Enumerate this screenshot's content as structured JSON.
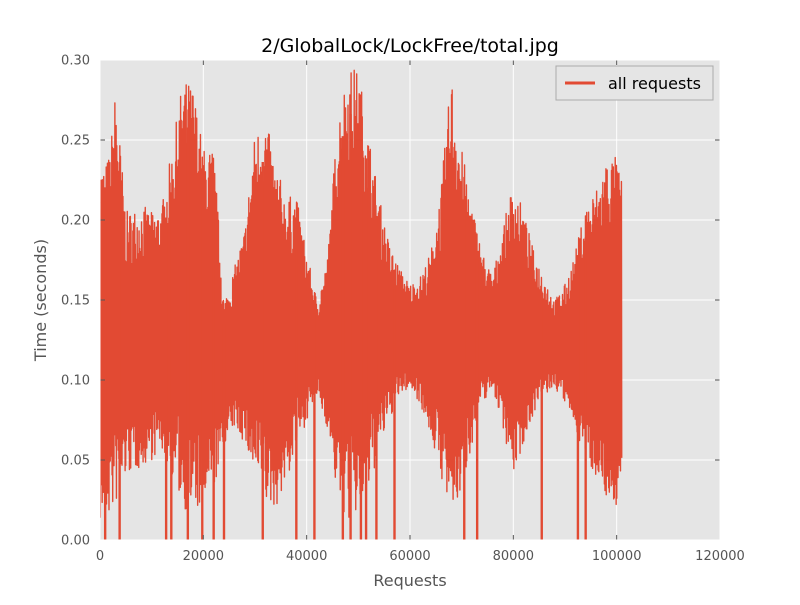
{
  "chart_data": {
    "type": "line",
    "title": "2/GlobalLock/LockFree/total.jpg",
    "xlabel": "Requests",
    "ylabel": "Time (seconds)",
    "xlim": [
      0,
      120000
    ],
    "ylim": [
      0.0,
      0.3
    ],
    "x_ticks": [
      0,
      20000,
      40000,
      60000,
      80000,
      100000,
      120000
    ],
    "x_tick_labels": [
      "0",
      "20000",
      "40000",
      "60000",
      "80000",
      "100000",
      "120000"
    ],
    "y_ticks": [
      0.0,
      0.05,
      0.1,
      0.15,
      0.2,
      0.25,
      0.3
    ],
    "y_tick_labels": [
      "0.00",
      "0.05",
      "0.10",
      "0.15",
      "0.20",
      "0.25",
      "0.30"
    ],
    "grid": true,
    "legend": "top-right",
    "colors": {
      "series": "#e24a33",
      "plot_background": "#e5e5e5",
      "grid": "#ffffff",
      "text": "#555555"
    },
    "series": [
      {
        "name": "all requests",
        "x_range": [
          0,
          101000
        ],
        "envelope": {
          "x": [
            0,
            1000,
            2000,
            3000,
            4000,
            5000,
            8000,
            10000,
            12000,
            14000,
            16000,
            18000,
            20000,
            22000,
            24000,
            26000,
            28000,
            30000,
            32000,
            34000,
            36000,
            38000,
            40000,
            42000,
            44000,
            46000,
            48000,
            50000,
            52000,
            54000,
            56000,
            58000,
            60000,
            62000,
            64000,
            66000,
            68000,
            70000,
            72000,
            74000,
            76000,
            78000,
            80000,
            82000,
            84000,
            86000,
            88000,
            90000,
            92000,
            94000,
            96000,
            98000,
            100000,
            101000
          ],
          "upper": [
            0.24,
            0.235,
            0.245,
            0.283,
            0.245,
            0.205,
            0.21,
            0.205,
            0.21,
            0.245,
            0.288,
            0.285,
            0.245,
            0.245,
            0.15,
            0.17,
            0.195,
            0.255,
            0.265,
            0.235,
            0.215,
            0.215,
            0.18,
            0.15,
            0.175,
            0.265,
            0.296,
            0.295,
            0.255,
            0.215,
            0.185,
            0.17,
            0.16,
            0.165,
            0.18,
            0.22,
            0.292,
            0.245,
            0.21,
            0.18,
            0.165,
            0.195,
            0.225,
            0.205,
            0.18,
            0.165,
            0.15,
            0.16,
            0.18,
            0.21,
            0.22,
            0.24,
            0.24,
            0.226
          ],
          "lower": [
            0.01,
            0.012,
            0.015,
            0.02,
            0.03,
            0.04,
            0.045,
            0.05,
            0.055,
            0.04,
            0.02,
            0.015,
            0.02,
            0.03,
            0.06,
            0.07,
            0.06,
            0.035,
            0.02,
            0.02,
            0.035,
            0.055,
            0.075,
            0.09,
            0.07,
            0.025,
            0.01,
            0.015,
            0.03,
            0.055,
            0.075,
            0.09,
            0.095,
            0.085,
            0.065,
            0.04,
            0.01,
            0.03,
            0.06,
            0.085,
            0.095,
            0.07,
            0.04,
            0.06,
            0.08,
            0.09,
            0.095,
            0.085,
            0.07,
            0.05,
            0.04,
            0.025,
            0.02,
            0.03
          ]
        },
        "dips_to_zero_x": [
          1000,
          3800,
          12800,
          13800,
          17000,
          19800,
          22000,
          24000,
          31500,
          38000,
          41500,
          47000,
          48500,
          50500,
          51500,
          53500,
          57000,
          70500,
          73000,
          85500,
          92500,
          94000
        ]
      }
    ]
  }
}
